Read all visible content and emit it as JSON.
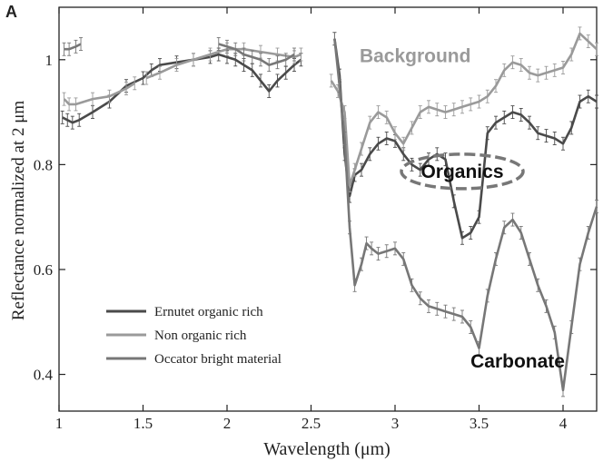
{
  "panel_label": "A",
  "chart_data": {
    "type": "line",
    "xlabel": "Wavelength (μm)",
    "ylabel": "Reflectance normalized at 2 μm",
    "xlim": [
      1.0,
      4.2
    ],
    "ylim": [
      0.33,
      1.1
    ],
    "xticks": [
      1,
      1.5,
      2,
      2.5,
      3,
      3.5,
      4
    ],
    "xtick_labels": [
      "1",
      "1.5",
      "2",
      "2.5",
      "3",
      "3.5",
      "4"
    ],
    "yticks": [
      0.4,
      0.6,
      0.8,
      1.0
    ],
    "ytick_labels": [
      "0.4",
      "0.6",
      "0.8",
      "1"
    ],
    "grid": false,
    "legend_position": "lower-left",
    "series": [
      {
        "name": "Ernutet organic rich",
        "color": "#4a4a4a",
        "segments": [
          [
            [
              1.02,
              0.89
            ],
            [
              1.05,
              0.885
            ],
            [
              1.08,
              0.88
            ],
            [
              1.12,
              0.885
            ],
            [
              1.2,
              0.9
            ],
            [
              1.3,
              0.92
            ],
            [
              1.4,
              0.95
            ],
            [
              1.5,
              0.965
            ],
            [
              1.55,
              0.98
            ],
            [
              1.6,
              0.99
            ],
            [
              1.7,
              0.995
            ],
            [
              1.8,
              1.0
            ],
            [
              1.9,
              1.005
            ],
            [
              1.95,
              1.01
            ],
            [
              2.0,
              1.005
            ],
            [
              2.05,
              1.0
            ],
            [
              2.1,
              0.99
            ],
            [
              2.15,
              0.98
            ],
            [
              2.2,
              0.96
            ],
            [
              2.25,
              0.94
            ],
            [
              2.3,
              0.96
            ],
            [
              2.35,
              0.975
            ],
            [
              2.4,
              0.99
            ],
            [
              2.44,
              1.0
            ]
          ],
          [
            [
              2.64,
              1.04
            ],
            [
              2.67,
              0.97
            ],
            [
              2.7,
              0.82
            ],
            [
              2.73,
              0.74
            ],
            [
              2.76,
              0.78
            ],
            [
              2.8,
              0.79
            ],
            [
              2.85,
              0.82
            ],
            [
              2.9,
              0.84
            ],
            [
              2.95,
              0.85
            ],
            [
              3.0,
              0.845
            ],
            [
              3.05,
              0.82
            ],
            [
              3.1,
              0.8
            ],
            [
              3.15,
              0.79
            ],
            [
              3.2,
              0.81
            ],
            [
              3.25,
              0.82
            ],
            [
              3.3,
              0.81
            ],
            [
              3.35,
              0.73
            ],
            [
              3.4,
              0.66
            ],
            [
              3.45,
              0.67
            ],
            [
              3.5,
              0.7
            ],
            [
              3.55,
              0.86
            ],
            [
              3.6,
              0.88
            ],
            [
              3.65,
              0.89
            ],
            [
              3.7,
              0.9
            ],
            [
              3.75,
              0.895
            ],
            [
              3.8,
              0.88
            ],
            [
              3.85,
              0.86
            ],
            [
              3.9,
              0.855
            ],
            [
              3.95,
              0.85
            ],
            [
              4.0,
              0.84
            ],
            [
              4.05,
              0.87
            ],
            [
              4.1,
              0.92
            ],
            [
              4.15,
              0.93
            ],
            [
              4.2,
              0.92
            ]
          ]
        ]
      },
      {
        "name": "Non organic rich",
        "color": "#9a9a9a",
        "segments": [
          [
            [
              1.03,
              0.925
            ],
            [
              1.06,
              0.915
            ],
            [
              1.1,
              0.915
            ],
            [
              1.2,
              0.925
            ],
            [
              1.3,
              0.93
            ],
            [
              1.4,
              0.945
            ],
            [
              1.45,
              0.955
            ]
          ],
          [
            [
              1.52,
              0.965
            ],
            [
              1.6,
              0.975
            ],
            [
              1.7,
              0.99
            ],
            [
              1.8,
              1.0
            ],
            [
              1.9,
              1.01
            ],
            [
              2.0,
              1.02
            ],
            [
              2.1,
              1.02
            ],
            [
              2.2,
              1.015
            ],
            [
              2.3,
              1.01
            ],
            [
              2.4,
              1.005
            ],
            [
              2.44,
              1.01
            ]
          ],
          [
            [
              2.62,
              0.96
            ],
            [
              2.66,
              0.94
            ],
            [
              2.7,
              0.9
            ],
            [
              2.73,
              0.76
            ],
            [
              2.76,
              0.79
            ],
            [
              2.8,
              0.83
            ],
            [
              2.85,
              0.88
            ],
            [
              2.9,
              0.9
            ],
            [
              2.95,
              0.89
            ],
            [
              3.0,
              0.86
            ],
            [
              3.05,
              0.84
            ],
            [
              3.1,
              0.87
            ],
            [
              3.15,
              0.9
            ],
            [
              3.2,
              0.91
            ],
            [
              3.25,
              0.905
            ],
            [
              3.3,
              0.9
            ],
            [
              3.35,
              0.905
            ],
            [
              3.4,
              0.91
            ],
            [
              3.45,
              0.915
            ],
            [
              3.5,
              0.92
            ],
            [
              3.55,
              0.93
            ],
            [
              3.6,
              0.95
            ],
            [
              3.65,
              0.98
            ],
            [
              3.7,
              0.995
            ],
            [
              3.75,
              0.99
            ],
            [
              3.8,
              0.975
            ],
            [
              3.85,
              0.97
            ],
            [
              3.9,
              0.975
            ],
            [
              3.95,
              0.98
            ],
            [
              4.0,
              0.985
            ],
            [
              4.05,
              1.01
            ],
            [
              4.1,
              1.05
            ],
            [
              4.15,
              1.035
            ],
            [
              4.2,
              1.02
            ]
          ]
        ]
      },
      {
        "name": "Occator bright material",
        "color": "#777777",
        "segments": [
          [
            [
              1.03,
              1.02
            ],
            [
              1.06,
              1.02
            ],
            [
              1.1,
              1.025
            ],
            [
              1.13,
              1.03
            ]
          ],
          [
            [
              1.95,
              1.03
            ],
            [
              2.0,
              1.025
            ],
            [
              2.05,
              1.02
            ],
            [
              2.1,
              1.01
            ],
            [
              2.15,
              1.005
            ],
            [
              2.2,
              1.0
            ],
            [
              2.25,
              0.99
            ],
            [
              2.3,
              0.995
            ],
            [
              2.35,
              1.0
            ],
            [
              2.4,
              1.01
            ]
          ],
          [
            [
              2.64,
              1.04
            ],
            [
              2.67,
              0.95
            ],
            [
              2.7,
              0.85
            ],
            [
              2.73,
              0.68
            ],
            [
              2.76,
              0.57
            ],
            [
              2.8,
              0.61
            ],
            [
              2.83,
              0.65
            ],
            [
              2.86,
              0.64
            ],
            [
              2.9,
              0.63
            ],
            [
              2.95,
              0.635
            ],
            [
              3.0,
              0.64
            ],
            [
              3.05,
              0.62
            ],
            [
              3.1,
              0.57
            ],
            [
              3.15,
              0.545
            ],
            [
              3.2,
              0.53
            ],
            [
              3.25,
              0.525
            ],
            [
              3.3,
              0.52
            ],
            [
              3.35,
              0.515
            ],
            [
              3.4,
              0.51
            ],
            [
              3.45,
              0.49
            ],
            [
              3.5,
              0.45
            ],
            [
              3.55,
              0.55
            ],
            [
              3.6,
              0.62
            ],
            [
              3.65,
              0.68
            ],
            [
              3.7,
              0.695
            ],
            [
              3.75,
              0.67
            ],
            [
              3.8,
              0.62
            ],
            [
              3.85,
              0.57
            ],
            [
              3.9,
              0.53
            ],
            [
              3.95,
              0.48
            ],
            [
              4.0,
              0.37
            ],
            [
              4.05,
              0.49
            ],
            [
              4.1,
              0.61
            ],
            [
              4.15,
              0.67
            ],
            [
              4.2,
              0.72
            ]
          ]
        ]
      }
    ],
    "annotations": [
      {
        "text": "Background",
        "x": 3.12,
        "y": 1.007,
        "color": "#9a9a9a"
      },
      {
        "text": "Organics",
        "x": 3.4,
        "y": 0.787,
        "color": "#111111",
        "ellipse": true
      },
      {
        "text": "Carbonate",
        "x": 3.73,
        "y": 0.425,
        "color": "#111111"
      }
    ]
  }
}
